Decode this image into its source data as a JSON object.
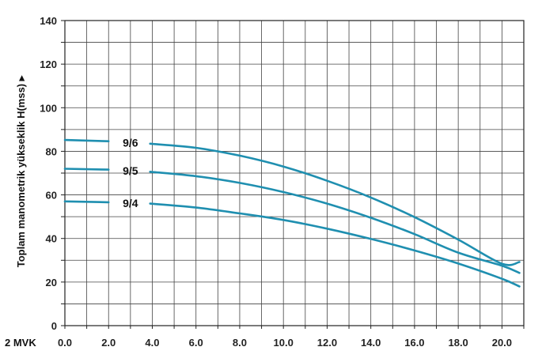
{
  "chart_data": {
    "type": "line",
    "xlabel": "2 MVK",
    "ylabel": "Toplam manometrik yükseklik H(mss) ▸",
    "xlim": [
      0,
      21
    ],
    "ylim": [
      0,
      140
    ],
    "x_ticks": [
      "0.0",
      "2.0",
      "4.0",
      "6.0",
      "8.0",
      "10.0",
      "12.0",
      "14.0",
      "16.0",
      "18.0",
      "20.0"
    ],
    "y_ticks": [
      "0",
      "20",
      "40",
      "60",
      "80",
      "100",
      "120",
      "140"
    ],
    "grid": true,
    "line_color": "#1f8fb0",
    "series": [
      {
        "name": "9/6",
        "segments": [
          {
            "x": [
              0,
              2
            ],
            "y": [
              85.2,
              84.6
            ]
          },
          {
            "x": [
              3.9,
              6,
              8,
              10,
              12,
              14,
              16,
              18,
              20,
              20.8
            ],
            "y": [
              83.5,
              81.6,
              78.0,
              73.0,
              66.5,
              58.8,
              49.8,
              39.5,
              28.4,
              29.2
            ]
          }
        ]
      },
      {
        "name": "9/5",
        "segments": [
          {
            "x": [
              0,
              2
            ],
            "y": [
              72.0,
              71.6
            ]
          },
          {
            "x": [
              3.9,
              6,
              8,
              10,
              12,
              14,
              16,
              18,
              20,
              20.8
            ],
            "y": [
              70.6,
              68.6,
              65.5,
              61.3,
              56.0,
              49.5,
              42.0,
              33.5,
              27.5,
              24.2
            ]
          }
        ]
      },
      {
        "name": "9/4",
        "segments": [
          {
            "x": [
              0,
              2
            ],
            "y": [
              57.0,
              56.6
            ]
          },
          {
            "x": [
              3.9,
              6,
              8,
              10,
              12,
              14,
              16,
              18,
              20,
              20.8
            ],
            "y": [
              56.0,
              54.2,
              51.5,
              48.5,
              44.5,
              39.8,
              34.5,
              28.5,
              21.5,
              18.0
            ]
          }
        ]
      }
    ]
  }
}
